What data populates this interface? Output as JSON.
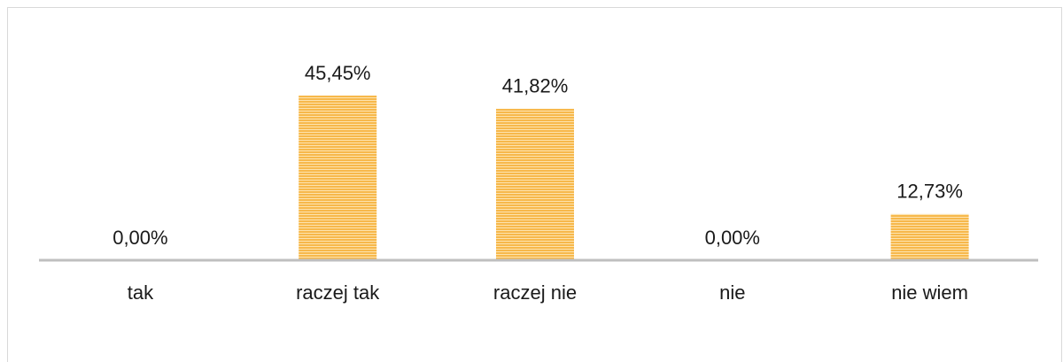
{
  "chart_data": {
    "type": "bar",
    "categories": [
      "tak",
      "raczej tak",
      "raczej nie",
      "nie",
      "nie wiem"
    ],
    "values": [
      0,
      45.45,
      41.82,
      0,
      12.73
    ],
    "value_labels": [
      "0,00%",
      "45,45%",
      "41,82%",
      "0,00%",
      "12,73%"
    ],
    "color": "#f7b84b"
  }
}
